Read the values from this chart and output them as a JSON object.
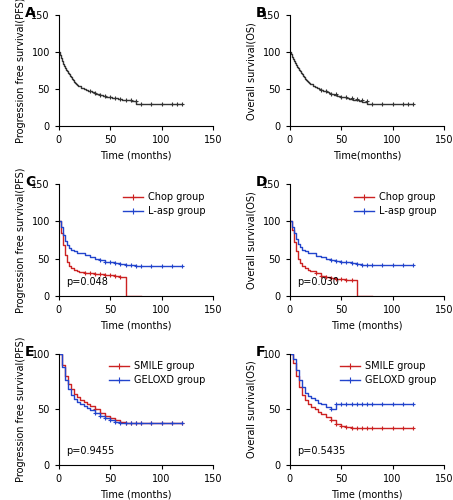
{
  "panels": [
    {
      "label": "A",
      "ylabel": "Progression free survival(PFS)",
      "xlabel": "Time (months)",
      "ylim": [
        0,
        150
      ],
      "xlim": [
        0,
        150
      ],
      "yticks": [
        0,
        50,
        100,
        150
      ],
      "xticks": [
        0,
        50,
        100,
        150
      ],
      "curves": [
        {
          "color": "#333333",
          "times": [
            0,
            1,
            2,
            3,
            4,
            5,
            6,
            7,
            8,
            9,
            10,
            11,
            12,
            13,
            14,
            15,
            16,
            17,
            18,
            19,
            20,
            22,
            24,
            26,
            28,
            30,
            32,
            34,
            36,
            38,
            40,
            43,
            46,
            49,
            52,
            55,
            58,
            61,
            64,
            67,
            70,
            75,
            80,
            85,
            90,
            95,
            100,
            105,
            110,
            120
          ],
          "surv": [
            100,
            96,
            92,
            88,
            84,
            81,
            78,
            76,
            74,
            72,
            70,
            68,
            66,
            64,
            62,
            60,
            58,
            57,
            56,
            55,
            54,
            52,
            50,
            49,
            48,
            47,
            46,
            45,
            44,
            43,
            42,
            41,
            40,
            39,
            38,
            38,
            37,
            36,
            35,
            35,
            34,
            30,
            30,
            30,
            30,
            30,
            30,
            30,
            30,
            30
          ],
          "censor_times": [
            30,
            35,
            40,
            45,
            50,
            55,
            60,
            65,
            70,
            75,
            80,
            90,
            100,
            110,
            115,
            120
          ],
          "censor_surv": [
            47,
            45,
            42,
            41,
            39,
            38,
            37,
            36,
            35,
            34,
            30,
            30,
            30,
            30,
            30,
            30
          ]
        }
      ],
      "legend": false,
      "pvalue": null
    },
    {
      "label": "B",
      "ylabel": "Overall survival(OS)",
      "xlabel": "Time(months)",
      "ylim": [
        0,
        150
      ],
      "xlim": [
        0,
        150
      ],
      "yticks": [
        0,
        50,
        100,
        150
      ],
      "xticks": [
        0,
        50,
        100,
        150
      ],
      "curves": [
        {
          "color": "#333333",
          "times": [
            0,
            1,
            2,
            3,
            4,
            5,
            6,
            7,
            8,
            9,
            10,
            11,
            12,
            13,
            14,
            15,
            16,
            17,
            18,
            19,
            20,
            22,
            24,
            26,
            28,
            30,
            32,
            34,
            36,
            38,
            40,
            43,
            46,
            49,
            52,
            55,
            58,
            61,
            64,
            67,
            70,
            75,
            80,
            85,
            90,
            95,
            100,
            105,
            110,
            120
          ],
          "surv": [
            100,
            97,
            94,
            91,
            88,
            85,
            82,
            80,
            78,
            76,
            74,
            72,
            70,
            68,
            66,
            64,
            62,
            61,
            60,
            59,
            57,
            55,
            53,
            52,
            51,
            49,
            48,
            47,
            46,
            45,
            44,
            42,
            41,
            40,
            39,
            38,
            37,
            36,
            35,
            34,
            33,
            30,
            30,
            30,
            30,
            30,
            30,
            30,
            30,
            30
          ],
          "censor_times": [
            30,
            35,
            40,
            45,
            50,
            55,
            60,
            65,
            70,
            75,
            80,
            90,
            100,
            110,
            115,
            120
          ],
          "censor_surv": [
            49,
            47,
            44,
            43,
            40,
            39,
            38,
            37,
            36,
            34,
            30,
            30,
            30,
            30,
            30,
            30
          ]
        }
      ],
      "legend": false,
      "pvalue": null
    },
    {
      "label": "C",
      "ylabel": "Progression free survival(PFS)",
      "xlabel": "Time (months)",
      "ylim": [
        0,
        150
      ],
      "xlim": [
        0,
        150
      ],
      "yticks": [
        0,
        50,
        100,
        150
      ],
      "xticks": [
        0,
        50,
        100,
        150
      ],
      "curves": [
        {
          "color": "#cc2222",
          "label": "Chop group",
          "times": [
            0,
            2,
            4,
            6,
            8,
            10,
            12,
            15,
            18,
            20,
            25,
            30,
            35,
            40,
            45,
            50,
            55,
            60,
            65,
            70,
            75,
            80
          ],
          "surv": [
            100,
            85,
            68,
            55,
            46,
            40,
            37,
            35,
            33,
            32,
            31,
            30,
            29,
            29,
            28,
            28,
            27,
            25,
            0,
            0,
            0,
            0
          ],
          "censor_times": [
            25,
            30,
            35,
            40,
            45,
            50,
            55,
            60
          ],
          "censor_surv": [
            31,
            30,
            29,
            29,
            28,
            28,
            27,
            25
          ]
        },
        {
          "color": "#2244cc",
          "label": "L-asp group",
          "times": [
            0,
            2,
            4,
            6,
            8,
            10,
            12,
            15,
            18,
            20,
            25,
            30,
            35,
            40,
            45,
            50,
            55,
            60,
            65,
            70,
            75,
            80,
            85,
            90,
            95,
            100,
            105,
            110,
            120
          ],
          "surv": [
            100,
            92,
            82,
            74,
            68,
            64,
            62,
            60,
            58,
            57,
            55,
            52,
            50,
            48,
            46,
            45,
            44,
            43,
            42,
            41,
            40,
            40,
            40,
            40,
            40,
            40,
            40,
            40,
            40
          ],
          "censor_times": [
            40,
            45,
            50,
            55,
            60,
            65,
            70,
            75,
            80,
            90,
            100,
            110,
            120
          ],
          "censor_surv": [
            48,
            46,
            45,
            44,
            43,
            42,
            41,
            40,
            40,
            40,
            40,
            40,
            40
          ]
        }
      ],
      "legend": true,
      "legend_loc": "upper right",
      "pvalue": "p=0.048"
    },
    {
      "label": "D",
      "ylabel": "Overall survival(OS)",
      "xlabel": "Time (months)",
      "ylim": [
        0,
        150
      ],
      "xlim": [
        0,
        150
      ],
      "yticks": [
        0,
        50,
        100,
        150
      ],
      "xticks": [
        0,
        50,
        100,
        150
      ],
      "curves": [
        {
          "color": "#cc2222",
          "label": "Chop group",
          "times": [
            0,
            2,
            4,
            6,
            8,
            10,
            12,
            15,
            18,
            20,
            25,
            30,
            35,
            40,
            45,
            50,
            55,
            60,
            65,
            70,
            75,
            80
          ],
          "surv": [
            100,
            88,
            72,
            60,
            50,
            44,
            40,
            37,
            34,
            33,
            30,
            27,
            25,
            24,
            23,
            22,
            21,
            21,
            0,
            0,
            0,
            0
          ],
          "censor_times": [
            25,
            30,
            35,
            40,
            45,
            50,
            55,
            60
          ],
          "censor_surv": [
            30,
            27,
            25,
            24,
            23,
            22,
            21,
            21
          ]
        },
        {
          "color": "#2244cc",
          "label": "L-asp group",
          "times": [
            0,
            2,
            4,
            6,
            8,
            10,
            12,
            15,
            18,
            20,
            25,
            30,
            35,
            40,
            45,
            50,
            55,
            60,
            65,
            70,
            75,
            80,
            85,
            90,
            95,
            100,
            105,
            110,
            120
          ],
          "surv": [
            100,
            93,
            84,
            76,
            70,
            65,
            62,
            60,
            58,
            57,
            54,
            52,
            50,
            48,
            47,
            46,
            45,
            44,
            43,
            42,
            41,
            41,
            41,
            41,
            41,
            41,
            41,
            41,
            41
          ],
          "censor_times": [
            40,
            45,
            50,
            55,
            60,
            65,
            70,
            75,
            80,
            90,
            100,
            110,
            120
          ],
          "censor_surv": [
            48,
            47,
            46,
            45,
            44,
            43,
            42,
            41,
            41,
            41,
            41,
            41,
            41
          ]
        }
      ],
      "legend": true,
      "legend_loc": "upper right",
      "pvalue": "p=0.030"
    },
    {
      "label": "E",
      "ylabel": "Progression free survival(PFS)",
      "xlabel": "Time (months)",
      "ylim": [
        0,
        100
      ],
      "xlim": [
        0,
        150
      ],
      "yticks": [
        0,
        50,
        100
      ],
      "xticks": [
        0,
        50,
        100,
        150
      ],
      "curves": [
        {
          "color": "#cc2222",
          "label": "SMILE group",
          "times": [
            0,
            3,
            6,
            9,
            12,
            15,
            18,
            21,
            24,
            27,
            30,
            35,
            40,
            45,
            50,
            55,
            60,
            65,
            70,
            75,
            80,
            85,
            90,
            95,
            100,
            110,
            120
          ],
          "surv": [
            100,
            90,
            80,
            73,
            68,
            64,
            61,
            58,
            57,
            55,
            53,
            50,
            47,
            44,
            42,
            40,
            39,
            38,
            38,
            38,
            38,
            38,
            38,
            38,
            38,
            38,
            38
          ],
          "censor_times": [
            35,
            40,
            45,
            50,
            55,
            60,
            65,
            70,
            75,
            80,
            90,
            100,
            110,
            120
          ],
          "censor_surv": [
            50,
            47,
            44,
            42,
            40,
            39,
            38,
            38,
            38,
            38,
            38,
            38,
            38,
            38
          ]
        },
        {
          "color": "#2244cc",
          "label": "GELOXD group",
          "times": [
            0,
            3,
            6,
            9,
            12,
            15,
            18,
            21,
            24,
            27,
            30,
            35,
            40,
            45,
            50,
            55,
            60,
            65,
            70,
            75,
            80,
            85,
            90,
            95,
            100,
            110,
            120
          ],
          "surv": [
            100,
            88,
            76,
            68,
            63,
            59,
            57,
            55,
            53,
            51,
            49,
            47,
            44,
            42,
            40,
            39,
            38,
            38,
            38,
            38,
            38,
            38,
            38,
            38,
            38,
            38,
            38
          ],
          "censor_times": [
            35,
            40,
            45,
            50,
            55,
            60,
            65,
            70,
            75,
            80,
            90,
            100,
            110,
            120
          ],
          "censor_surv": [
            47,
            44,
            42,
            40,
            39,
            38,
            38,
            38,
            38,
            38,
            38,
            38,
            38,
            38
          ]
        }
      ],
      "legend": true,
      "legend_loc": "upper right",
      "pvalue": "p=0.9455"
    },
    {
      "label": "F",
      "ylabel": "Overall survival(OS)",
      "xlabel": "Time (months)",
      "ylim": [
        0,
        100
      ],
      "xlim": [
        0,
        150
      ],
      "yticks": [
        0,
        50,
        100
      ],
      "xticks": [
        0,
        50,
        100,
        150
      ],
      "curves": [
        {
          "color": "#cc2222",
          "label": "SMILE group",
          "times": [
            0,
            3,
            6,
            9,
            12,
            15,
            18,
            21,
            24,
            27,
            30,
            35,
            40,
            45,
            50,
            55,
            60,
            65,
            70,
            75,
            80,
            85,
            90,
            95,
            100,
            110,
            120
          ],
          "surv": [
            100,
            92,
            80,
            70,
            63,
            58,
            55,
            52,
            50,
            48,
            46,
            43,
            40,
            37,
            35,
            34,
            33,
            33,
            33,
            33,
            33,
            33,
            33,
            33,
            33,
            33,
            33
          ],
          "censor_times": [
            40,
            45,
            50,
            55,
            60,
            65,
            70,
            75,
            80,
            90,
            100,
            110,
            120
          ],
          "censor_surv": [
            40,
            37,
            35,
            34,
            33,
            33,
            33,
            33,
            33,
            33,
            33,
            33,
            33
          ]
        },
        {
          "color": "#2244cc",
          "label": "GELOXD group",
          "times": [
            0,
            3,
            6,
            9,
            12,
            15,
            18,
            21,
            24,
            27,
            30,
            35,
            40,
            45,
            50,
            55,
            60,
            65,
            70,
            75,
            80,
            85,
            90,
            95,
            100,
            110,
            120
          ],
          "surv": [
            100,
            95,
            85,
            76,
            70,
            65,
            62,
            60,
            58,
            56,
            55,
            52,
            50,
            55,
            55,
            55,
            55,
            55,
            55,
            55,
            55,
            55,
            55,
            55,
            55,
            55,
            55
          ],
          "censor_times": [
            40,
            45,
            50,
            55,
            60,
            65,
            70,
            75,
            80,
            90,
            100,
            110,
            120
          ],
          "censor_surv": [
            50,
            55,
            55,
            55,
            55,
            55,
            55,
            55,
            55,
            55,
            55,
            55,
            55
          ]
        }
      ],
      "legend": true,
      "legend_loc": "upper right",
      "pvalue": "p=0.5435"
    }
  ],
  "bg_color": "#ffffff",
  "line_width": 1.0,
  "tick_fontsize": 7,
  "label_fontsize": 7,
  "panel_label_fontsize": 10,
  "legend_fontsize": 7
}
